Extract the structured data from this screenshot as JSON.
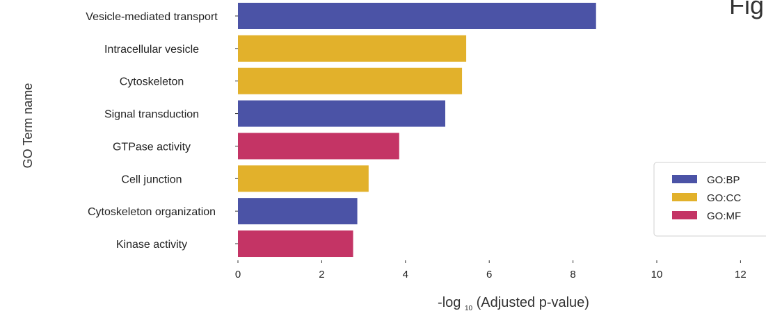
{
  "chart_data": {
    "type": "bar",
    "orientation": "horizontal",
    "title": "Fig",
    "xlabel": {
      "prefix": "-log",
      "subscript": "10",
      "suffix": "(Adjusted p-value)"
    },
    "ylabel": "GO Term name",
    "xlim": [
      0,
      12
    ],
    "xticks": [
      0,
      2,
      4,
      6,
      8,
      10,
      12
    ],
    "grid": false,
    "legend": {
      "position": "right",
      "entries": [
        {
          "label": "GO:BP",
          "color": "#4b53a6"
        },
        {
          "label": "GO:CC",
          "color": "#e2b12b"
        },
        {
          "label": "GO:MF",
          "color": "#c43465"
        }
      ]
    },
    "bars": [
      {
        "label": "Vesicle-mediated transport",
        "value": 8.55,
        "category": "GO:BP"
      },
      {
        "label": "Intracellular vesicle",
        "value": 5.45,
        "category": "GO:CC"
      },
      {
        "label": "Cytoskeleton",
        "value": 5.35,
        "category": "GO:CC"
      },
      {
        "label": "Signal transduction",
        "value": 4.95,
        "category": "GO:BP"
      },
      {
        "label": "GTPase activity",
        "value": 3.85,
        "category": "GO:MF"
      },
      {
        "label": "Cell junction",
        "value": 3.12,
        "category": "GO:CC"
      },
      {
        "label": "Cytoskeleton organization",
        "value": 2.85,
        "category": "GO:BP"
      },
      {
        "label": "Kinase activity",
        "value": 2.75,
        "category": "GO:MF"
      }
    ]
  }
}
